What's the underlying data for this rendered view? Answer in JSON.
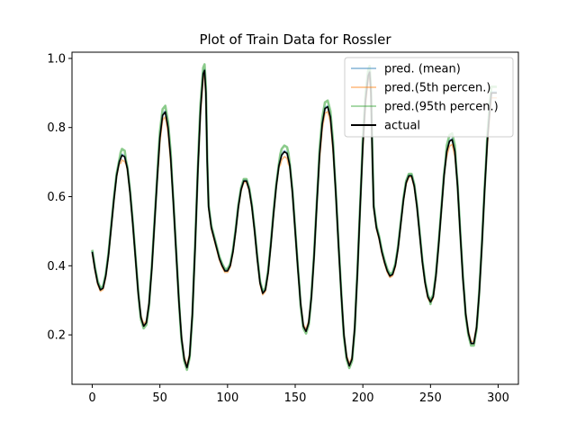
{
  "chart_data": {
    "type": "line",
    "title": "Plot of Train Data for Rossler",
    "xlabel": "",
    "ylabel": "",
    "xlim": [
      -14.95,
      314.95
    ],
    "ylim": [
      0.057,
      1.018
    ],
    "xticks": [
      0,
      50,
      100,
      150,
      200,
      250,
      300
    ],
    "yticks": [
      0.2,
      0.4,
      0.6,
      0.8,
      1.0
    ],
    "ytick_labels": [
      "0.2",
      "0.4",
      "0.6",
      "0.8",
      "1.0"
    ],
    "grid": false,
    "legend_position": "top-right",
    "series": [
      {
        "name": "pred. (mean)",
        "color": "#1f77b4",
        "offset": 0.004,
        "peak_offset": 0.0,
        "values": []
      },
      {
        "name": "pred.(5th percen.)",
        "color": "#ff7f0e",
        "offset": -0.008,
        "peak_offset": -0.01,
        "values": []
      },
      {
        "name": "pred.(95th percen.)",
        "color": "#2ca02c",
        "offset": 0.012,
        "peak_offset": 0.012,
        "values": []
      },
      {
        "name": "actual",
        "color": "#000000",
        "offset": 0.0,
        "peak_offset": 0.0,
        "values": []
      }
    ],
    "actual_keypoints": [
      [
        0,
        0.44
      ],
      [
        2,
        0.39
      ],
      [
        4,
        0.35
      ],
      [
        6,
        0.33
      ],
      [
        8,
        0.335
      ],
      [
        10,
        0.37
      ],
      [
        12,
        0.43
      ],
      [
        14,
        0.51
      ],
      [
        16,
        0.59
      ],
      [
        18,
        0.66
      ],
      [
        20,
        0.7
      ],
      [
        22,
        0.72
      ],
      [
        24,
        0.715
      ],
      [
        26,
        0.68
      ],
      [
        28,
        0.61
      ],
      [
        30,
        0.52
      ],
      [
        32,
        0.42
      ],
      [
        34,
        0.32
      ],
      [
        36,
        0.25
      ],
      [
        38,
        0.225
      ],
      [
        40,
        0.235
      ],
      [
        42,
        0.29
      ],
      [
        44,
        0.39
      ],
      [
        46,
        0.52
      ],
      [
        48,
        0.65
      ],
      [
        50,
        0.77
      ],
      [
        52,
        0.835
      ],
      [
        54,
        0.845
      ],
      [
        56,
        0.8
      ],
      [
        58,
        0.71
      ],
      [
        60,
        0.58
      ],
      [
        62,
        0.44
      ],
      [
        64,
        0.3
      ],
      [
        66,
        0.19
      ],
      [
        68,
        0.13
      ],
      [
        70,
        0.105
      ],
      [
        72,
        0.14
      ],
      [
        74,
        0.26
      ],
      [
        76,
        0.45
      ],
      [
        78,
        0.67
      ],
      [
        80,
        0.85
      ],
      [
        82,
        0.955
      ],
      [
        83,
        0.965
      ],
      [
        84,
        0.9
      ],
      [
        85,
        0.7
      ],
      [
        86,
        0.57
      ],
      [
        88,
        0.51
      ],
      [
        90,
        0.48
      ],
      [
        92,
        0.45
      ],
      [
        94,
        0.42
      ],
      [
        96,
        0.4
      ],
      [
        98,
        0.385
      ],
      [
        100,
        0.385
      ],
      [
        102,
        0.4
      ],
      [
        104,
        0.44
      ],
      [
        106,
        0.5
      ],
      [
        108,
        0.57
      ],
      [
        110,
        0.62
      ],
      [
        112,
        0.645
      ],
      [
        114,
        0.645
      ],
      [
        116,
        0.62
      ],
      [
        118,
        0.57
      ],
      [
        120,
        0.5
      ],
      [
        122,
        0.42
      ],
      [
        124,
        0.35
      ],
      [
        126,
        0.32
      ],
      [
        128,
        0.33
      ],
      [
        130,
        0.38
      ],
      [
        132,
        0.46
      ],
      [
        134,
        0.55
      ],
      [
        136,
        0.63
      ],
      [
        138,
        0.69
      ],
      [
        140,
        0.72
      ],
      [
        142,
        0.73
      ],
      [
        144,
        0.725
      ],
      [
        146,
        0.69
      ],
      [
        148,
        0.61
      ],
      [
        150,
        0.5
      ],
      [
        152,
        0.39
      ],
      [
        154,
        0.29
      ],
      [
        156,
        0.225
      ],
      [
        158,
        0.21
      ],
      [
        160,
        0.235
      ],
      [
        162,
        0.31
      ],
      [
        164,
        0.43
      ],
      [
        166,
        0.58
      ],
      [
        168,
        0.72
      ],
      [
        170,
        0.81
      ],
      [
        172,
        0.855
      ],
      [
        174,
        0.86
      ],
      [
        176,
        0.83
      ],
      [
        178,
        0.74
      ],
      [
        180,
        0.61
      ],
      [
        182,
        0.46
      ],
      [
        184,
        0.32
      ],
      [
        186,
        0.2
      ],
      [
        188,
        0.135
      ],
      [
        190,
        0.11
      ],
      [
        192,
        0.13
      ],
      [
        194,
        0.22
      ],
      [
        196,
        0.38
      ],
      [
        198,
        0.57
      ],
      [
        200,
        0.75
      ],
      [
        202,
        0.88
      ],
      [
        204,
        0.95
      ],
      [
        205,
        0.96
      ],
      [
        206,
        0.9
      ],
      [
        207,
        0.72
      ],
      [
        208,
        0.57
      ],
      [
        210,
        0.51
      ],
      [
        212,
        0.48
      ],
      [
        214,
        0.44
      ],
      [
        216,
        0.41
      ],
      [
        218,
        0.385
      ],
      [
        220,
        0.37
      ],
      [
        222,
        0.375
      ],
      [
        224,
        0.4
      ],
      [
        226,
        0.45
      ],
      [
        228,
        0.52
      ],
      [
        230,
        0.59
      ],
      [
        232,
        0.64
      ],
      [
        234,
        0.66
      ],
      [
        236,
        0.66
      ],
      [
        238,
        0.63
      ],
      [
        240,
        0.57
      ],
      [
        242,
        0.49
      ],
      [
        244,
        0.41
      ],
      [
        246,
        0.35
      ],
      [
        248,
        0.31
      ],
      [
        250,
        0.295
      ],
      [
        252,
        0.31
      ],
      [
        254,
        0.37
      ],
      [
        256,
        0.46
      ],
      [
        258,
        0.56
      ],
      [
        260,
        0.66
      ],
      [
        262,
        0.73
      ],
      [
        264,
        0.76
      ],
      [
        266,
        0.765
      ],
      [
        268,
        0.73
      ],
      [
        270,
        0.63
      ],
      [
        272,
        0.49
      ],
      [
        274,
        0.36
      ],
      [
        276,
        0.26
      ],
      [
        278,
        0.205
      ],
      [
        280,
        0.175
      ],
      [
        282,
        0.175
      ],
      [
        284,
        0.22
      ],
      [
        286,
        0.32
      ],
      [
        288,
        0.46
      ],
      [
        290,
        0.62
      ],
      [
        292,
        0.76
      ],
      [
        294,
        0.86
      ],
      [
        295,
        0.9
      ]
    ]
  }
}
